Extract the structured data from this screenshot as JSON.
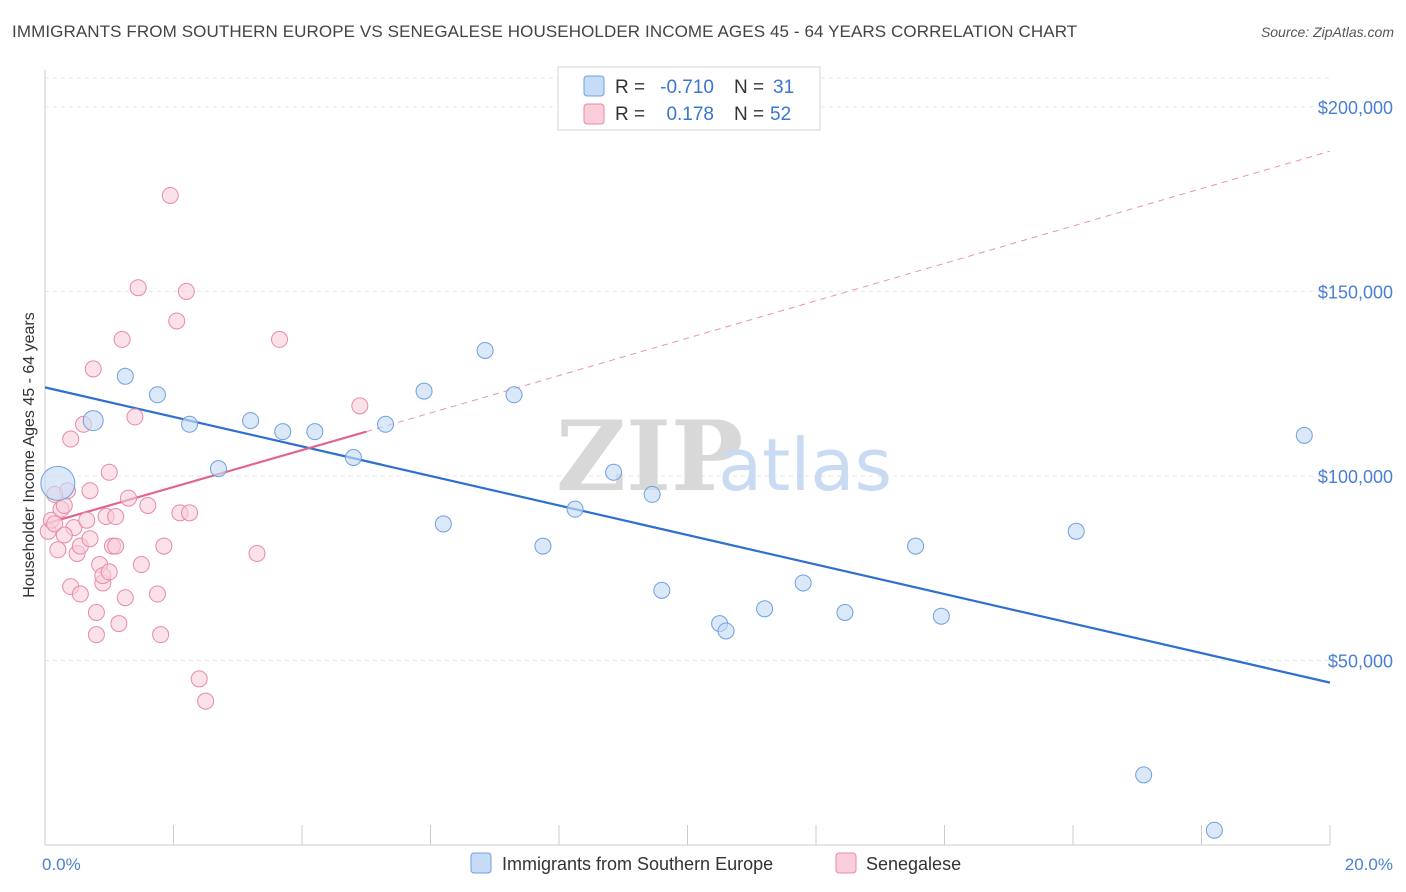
{
  "title": "IMMIGRANTS FROM SOUTHERN EUROPE VS SENEGALESE HOUSEHOLDER INCOME AGES 45 - 64 YEARS CORRELATION CHART",
  "source": "Source: ZipAtlas.com",
  "watermark": {
    "zip": "ZIP",
    "atlas": "atlas"
  },
  "colors": {
    "blue": "#6fa0e0",
    "blue_fill": "#c6dbf5",
    "blue_line": "#2f6fd0",
    "pink": "#e88aa8",
    "pink_fill": "#f9cdd9",
    "pink_line": "#e2648e",
    "grid": "#e6e6e6",
    "tick_text": "#4a7fd4"
  },
  "legend": {
    "rows": [
      {
        "r_label": "R =",
        "r_value": "-0.710",
        "n_label": "N =",
        "n_value": "31"
      },
      {
        "r_label": "R =",
        "r_value": "0.178",
        "n_label": "N =",
        "n_value": "52"
      }
    ]
  },
  "bottom_legend": [
    "Immigrants from Southern Europe",
    "Senegalese"
  ],
  "chart_data": {
    "type": "scatter",
    "title": "IMMIGRANTS FROM SOUTHERN EUROPE VS SENEGALESE HOUSEHOLDER INCOME AGES 45 - 64 YEARS CORRELATION CHART",
    "xlabel": "",
    "ylabel": "Householder Income Ages 45 - 64 years",
    "xlim": [
      0,
      20
    ],
    "ylim": [
      0,
      210000
    ],
    "x_tick_labels": [
      "0.0%",
      "20.0%"
    ],
    "y_ticks": [
      50000,
      100000,
      150000,
      200000
    ],
    "y_tick_labels": [
      "$50,000",
      "$100,000",
      "$150,000",
      "$200,000"
    ],
    "grid": true,
    "legend_position": "top-center",
    "series": [
      {
        "name": "Immigrants from Southern Europe",
        "points": [
          [
            0.2,
            98000
          ],
          [
            0.75,
            115000
          ],
          [
            1.25,
            127000
          ],
          [
            1.75,
            122000
          ],
          [
            2.25,
            114000
          ],
          [
            2.7,
            102000
          ],
          [
            3.2,
            115000
          ],
          [
            3.7,
            112000
          ],
          [
            4.2,
            112000
          ],
          [
            4.8,
            105000
          ],
          [
            5.3,
            114000
          ],
          [
            5.9,
            123000
          ],
          [
            6.2,
            87000
          ],
          [
            6.85,
            134000
          ],
          [
            7.3,
            122000
          ],
          [
            7.75,
            81000
          ],
          [
            8.25,
            91000
          ],
          [
            8.85,
            101000
          ],
          [
            9.45,
            95000
          ],
          [
            9.6,
            69000
          ],
          [
            10.5,
            60000
          ],
          [
            10.6,
            58000
          ],
          [
            11.2,
            64000
          ],
          [
            11.8,
            71000
          ],
          [
            12.45,
            63000
          ],
          [
            13.55,
            81000
          ],
          [
            13.95,
            62000
          ],
          [
            16.05,
            85000
          ],
          [
            17.1,
            19000
          ],
          [
            18.2,
            4000
          ],
          [
            19.6,
            111000
          ]
        ],
        "trend": {
          "x": [
            0,
            20
          ],
          "y": [
            124000,
            44000
          ]
        }
      },
      {
        "name": "Senegalese",
        "points": [
          [
            0.05,
            85000
          ],
          [
            0.1,
            88000
          ],
          [
            0.15,
            87000
          ],
          [
            0.2,
            80000
          ],
          [
            0.25,
            91000
          ],
          [
            0.3,
            92000
          ],
          [
            0.35,
            96000
          ],
          [
            0.4,
            110000
          ],
          [
            0.4,
            70000
          ],
          [
            0.45,
            86000
          ],
          [
            0.5,
            79000
          ],
          [
            0.55,
            81000
          ],
          [
            0.6,
            114000
          ],
          [
            0.65,
            88000
          ],
          [
            0.7,
            96000
          ],
          [
            0.75,
            129000
          ],
          [
            0.8,
            57000
          ],
          [
            0.8,
            63000
          ],
          [
            0.85,
            76000
          ],
          [
            0.9,
            71000
          ],
          [
            0.9,
            73000
          ],
          [
            0.95,
            89000
          ],
          [
            1.0,
            101000
          ],
          [
            1.05,
            81000
          ],
          [
            1.1,
            81000
          ],
          [
            1.1,
            89000
          ],
          [
            1.15,
            60000
          ],
          [
            1.2,
            137000
          ],
          [
            1.25,
            67000
          ],
          [
            1.3,
            94000
          ],
          [
            1.4,
            116000
          ],
          [
            1.45,
            151000
          ],
          [
            1.5,
            76000
          ],
          [
            1.6,
            92000
          ],
          [
            1.75,
            68000
          ],
          [
            1.8,
            57000
          ],
          [
            1.85,
            81000
          ],
          [
            1.95,
            176000
          ],
          [
            2.05,
            142000
          ],
          [
            2.1,
            90000
          ],
          [
            2.2,
            150000
          ],
          [
            2.25,
            90000
          ],
          [
            2.4,
            45000
          ],
          [
            2.5,
            39000
          ],
          [
            3.3,
            79000
          ],
          [
            3.65,
            137000
          ],
          [
            4.9,
            119000
          ],
          [
            0.15,
            95000
          ],
          [
            0.3,
            84000
          ],
          [
            0.55,
            68000
          ],
          [
            0.7,
            83000
          ],
          [
            1.0,
            74000
          ]
        ],
        "trend": {
          "x": [
            0,
            5
          ],
          "y": [
            87000,
            112000
          ]
        },
        "trend_extended": {
          "x": [
            5,
            20
          ],
          "y": [
            112000,
            188000
          ]
        }
      }
    ]
  }
}
